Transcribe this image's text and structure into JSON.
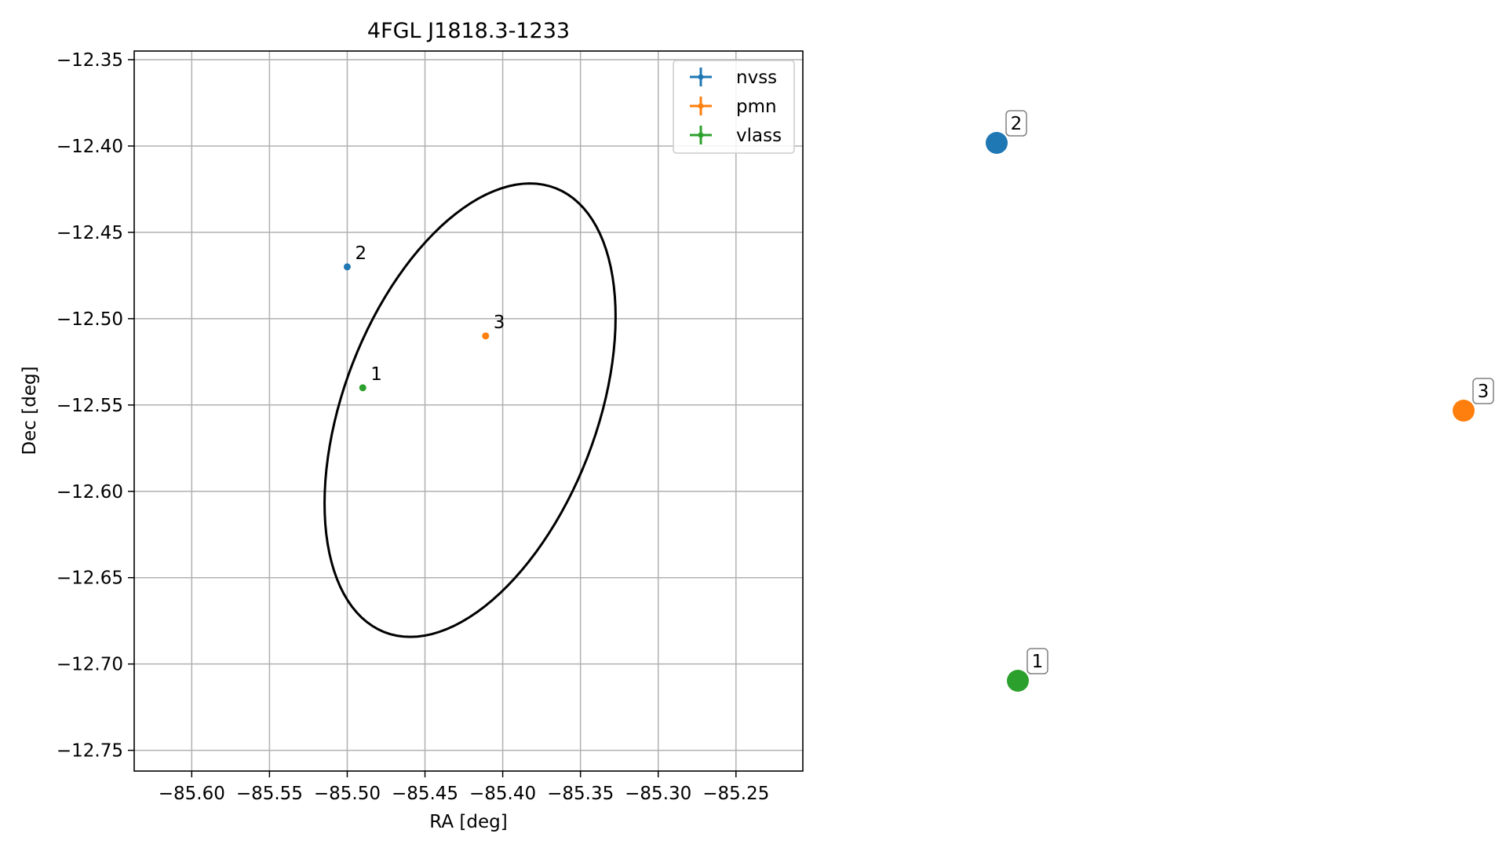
{
  "chart_data": {
    "type": "scatter",
    "title": "4FGL J1818.3-1233",
    "xlabel": "RA [deg]",
    "ylabel": "Dec [deg]",
    "xlim": [
      -85.637,
      -85.207
    ],
    "ylim": [
      -12.762,
      -12.345
    ],
    "x_ticks": [
      -85.6,
      -85.55,
      -85.5,
      -85.45,
      -85.4,
      -85.35,
      -85.3,
      -85.25
    ],
    "x_tick_labels": [
      "−85.60",
      "−85.55",
      "−85.50",
      "−85.45",
      "−85.40",
      "−85.35",
      "−85.30",
      "−85.25"
    ],
    "y_ticks": [
      -12.35,
      -12.4,
      -12.45,
      -12.5,
      -12.55,
      -12.6,
      -12.65,
      -12.7,
      -12.75
    ],
    "y_tick_labels": [
      "−12.35",
      "−12.40",
      "−12.45",
      "−12.50",
      "−12.55",
      "−12.60",
      "−12.65",
      "−12.70",
      "−12.75"
    ],
    "grid": true,
    "legend_position": "top-right",
    "ellipse": {
      "center": [
        -85.421,
        -12.553
      ],
      "semi_major_deg": 0.14,
      "semi_minor_deg": 0.08,
      "tilt_deg": 25,
      "color": "#000000"
    },
    "series": [
      {
        "name": "nvss",
        "color": "#1f77b4",
        "points": [
          {
            "x": -85.5,
            "y": -12.47,
            "label": "2"
          }
        ]
      },
      {
        "name": "pmn",
        "color": "#ff7f0e",
        "points": [
          {
            "x": -85.411,
            "y": -12.51,
            "label": "3"
          }
        ]
      },
      {
        "name": "vlass",
        "color": "#2ca02c",
        "points": [
          {
            "x": -85.49,
            "y": -12.54,
            "label": "1"
          }
        ]
      }
    ],
    "outside_markers": [
      {
        "label": "2",
        "series": "nvss",
        "color": "#1f77b4"
      },
      {
        "label": "3",
        "series": "pmn",
        "color": "#ff7f0e"
      },
      {
        "label": "1",
        "series": "vlass",
        "color": "#2ca02c"
      }
    ]
  }
}
